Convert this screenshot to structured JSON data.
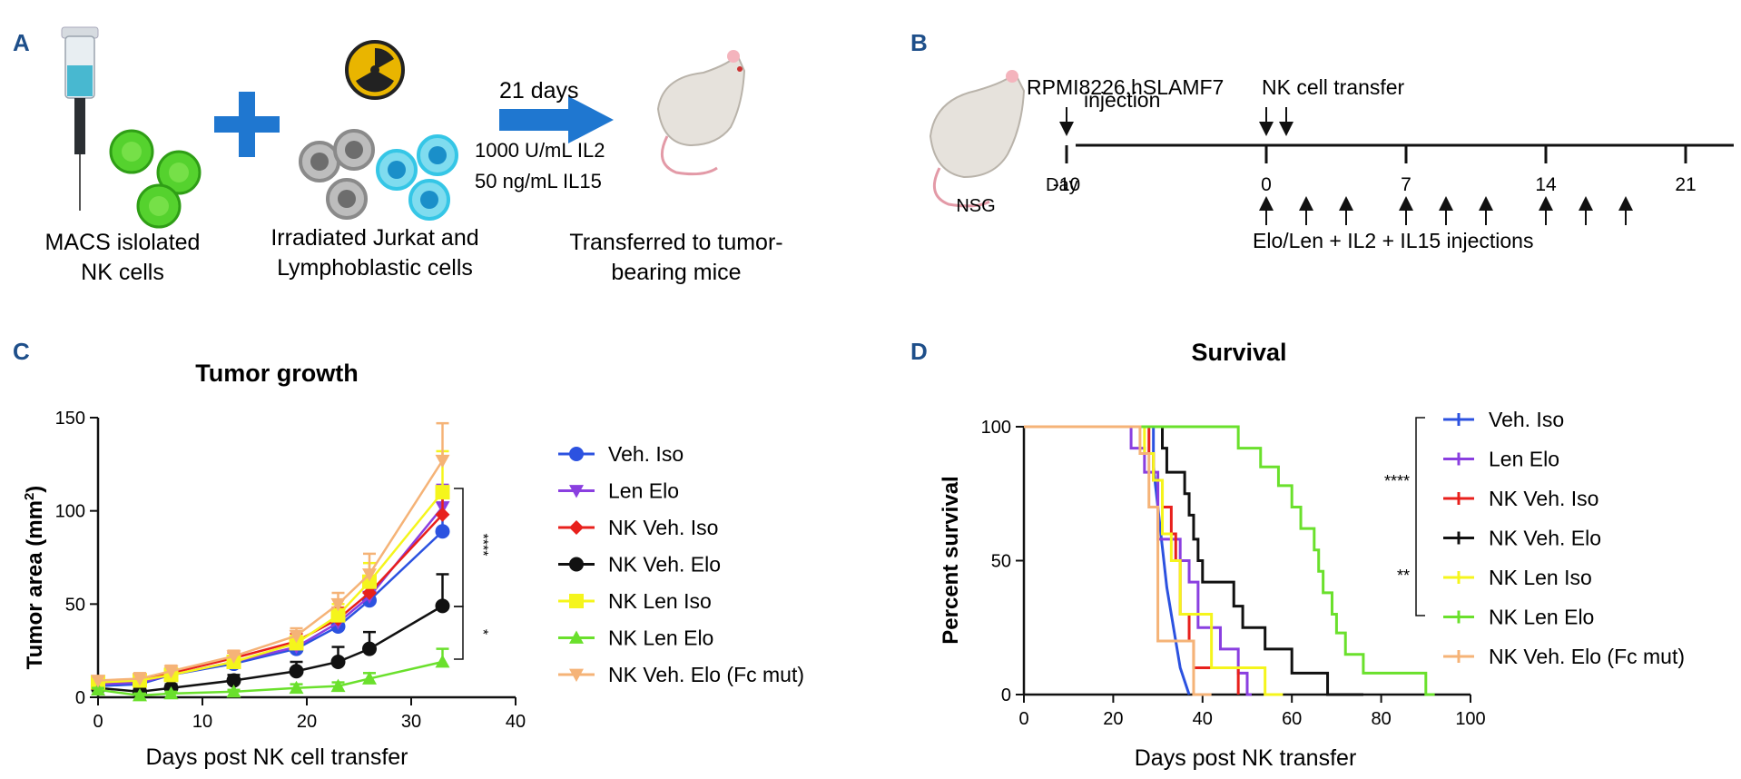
{
  "panel_a": {
    "label": "A",
    "nk_caption_1": "MACS islolated",
    "nk_caption_2": "NK cells",
    "feeder_caption_1": "Irradiated Jurkat and",
    "feeder_caption_2": "Lymphoblastic cells",
    "arrow_top": "21 days",
    "arrow_bottom_1": "1000 U/mL IL2",
    "arrow_bottom_2": "50 ng/mL IL15",
    "transfer_caption_1": "Transferred to tumor-",
    "transfer_caption_2": "bearing mice",
    "colors": {
      "arrow": "#1f77d0",
      "nk_cell": "#55d22e",
      "jurkat": "#8a8a8a",
      "lympho": "#35c6e6",
      "radiation": "#e9b500"
    }
  },
  "panel_b": {
    "label": "B",
    "mouse_label": "NSG",
    "injection_label_1": "RPMI8226.hSLAMF7",
    "injection_label_2": "injection",
    "nk_transfer_label": "NK cell transfer",
    "day_label": "Day",
    "ticks": [
      "-10",
      "0",
      "7",
      "14",
      "21"
    ],
    "tick_days": [
      -10,
      0,
      7,
      14,
      21
    ],
    "nk_transfer_days": [
      0,
      1
    ],
    "injection_days": [
      0,
      2,
      4,
      7,
      9,
      11,
      14,
      16,
      18
    ],
    "injections_label": "Elo/Len + IL2 + IL15 injections"
  },
  "panel_c": {
    "label": "C",
    "significance": [
      "****",
      "*"
    ]
  },
  "panel_d": {
    "label": "D",
    "significance": [
      "****",
      "**"
    ]
  },
  "chart_data": [
    {
      "type": "line",
      "title": "Tumor growth",
      "xlabel": "Days post NK cell transfer",
      "ylabel": "Tumor area (mm",
      "ylabel_sup": "2",
      "ylabel_close": ")",
      "xlim": [
        0,
        40
      ],
      "ylim": [
        0,
        150
      ],
      "xticks": [
        "0",
        "10",
        "20",
        "30",
        "40"
      ],
      "yticks": [
        "0",
        "50",
        "100",
        "150"
      ],
      "x": [
        0,
        4,
        7,
        13,
        19,
        23,
        26,
        33
      ],
      "series": [
        {
          "name": "Veh. Iso",
          "color": "#2c52e0",
          "marker": "circle",
          "values": [
            6,
            7,
            12,
            18,
            26,
            38,
            52,
            89
          ],
          "err": [
            2,
            3,
            3,
            4,
            5,
            7,
            9,
            20
          ]
        },
        {
          "name": "Len Elo",
          "color": "#8a3fe0",
          "marker": "tri-down",
          "values": [
            7,
            8,
            12,
            19,
            27,
            40,
            54,
            102
          ],
          "err": [
            2,
            3,
            3,
            3,
            4,
            6,
            8,
            12
          ]
        },
        {
          "name": "NK Veh. Iso",
          "color": "#e8201c",
          "marker": "diamond",
          "values": [
            8,
            9,
            13,
            21,
            30,
            42,
            56,
            98
          ],
          "err": [
            2,
            2,
            3,
            3,
            4,
            6,
            8,
            12
          ]
        },
        {
          "name": "NK Veh. Elo",
          "color": "#111111",
          "marker": "circle",
          "values": [
            5,
            3,
            5,
            9,
            14,
            19,
            26,
            49
          ],
          "err": [
            1,
            2,
            2,
            3,
            5,
            8,
            9,
            17
          ]
        },
        {
          "name": "NK Len Iso",
          "color": "#f5f51c",
          "marker": "square",
          "values": [
            8,
            9,
            12,
            19,
            29,
            44,
            62,
            110
          ],
          "err": [
            2,
            3,
            3,
            3,
            4,
            6,
            10,
            22
          ]
        },
        {
          "name": "NK Len Elo",
          "color": "#6ae02c",
          "marker": "tri-up",
          "values": [
            4,
            1,
            2,
            3,
            5,
            6,
            10,
            19
          ],
          "err": [
            1,
            1,
            1,
            1,
            2,
            2,
            3,
            7
          ]
        },
        {
          "name": "NK Veh. Elo (Fc mut)",
          "color": "#f5b377",
          "marker": "tri-down",
          "values": [
            9,
            10,
            14,
            22,
            33,
            50,
            66,
            127
          ],
          "err": [
            2,
            3,
            3,
            3,
            4,
            6,
            11,
            20
          ]
        }
      ]
    },
    {
      "type": "line",
      "step": true,
      "title": "Survival",
      "xlabel": "Days post NK transfer",
      "ylabel": "Percent survival",
      "xlim": [
        0,
        100
      ],
      "ylim": [
        0,
        100
      ],
      "xticks": [
        "0",
        "20",
        "40",
        "60",
        "80",
        "100"
      ],
      "yticks": [
        "0",
        "50",
        "100"
      ],
      "series": [
        {
          "name": "Veh. Iso",
          "color": "#2c52e0",
          "points": [
            [
              0,
              100
            ],
            [
              29,
              100
            ],
            [
              29,
              85
            ],
            [
              30,
              70
            ],
            [
              31,
              55
            ],
            [
              32,
              40
            ],
            [
              33,
              30
            ],
            [
              34,
              20
            ],
            [
              35,
              10
            ],
            [
              37,
              0
            ]
          ]
        },
        {
          "name": "Len Elo",
          "color": "#8a3fe0",
          "points": [
            [
              0,
              100
            ],
            [
              24,
              100
            ],
            [
              24,
              92
            ],
            [
              27,
              92
            ],
            [
              27,
              83
            ],
            [
              30,
              83
            ],
            [
              30,
              58
            ],
            [
              35,
              58
            ],
            [
              35,
              50
            ],
            [
              37,
              50
            ],
            [
              37,
              42
            ],
            [
              39,
              42
            ],
            [
              39,
              25
            ],
            [
              44,
              25
            ],
            [
              44,
              17
            ],
            [
              48,
              17
            ],
            [
              48,
              8
            ],
            [
              50,
              8
            ],
            [
              50,
              0
            ],
            [
              51,
              0
            ]
          ]
        },
        {
          "name": "NK Veh. Iso",
          "color": "#e8201c",
          "points": [
            [
              0,
              100
            ],
            [
              28,
              100
            ],
            [
              28,
              90
            ],
            [
              29,
              90
            ],
            [
              29,
              80
            ],
            [
              31,
              80
            ],
            [
              31,
              70
            ],
            [
              33,
              70
            ],
            [
              33,
              60
            ],
            [
              34,
              60
            ],
            [
              34,
              50
            ],
            [
              35,
              50
            ],
            [
              35,
              30
            ],
            [
              37,
              30
            ],
            [
              37,
              20
            ],
            [
              38,
              20
            ],
            [
              38,
              10
            ],
            [
              48,
              10
            ],
            [
              48,
              0
            ]
          ]
        },
        {
          "name": "NK Veh. Elo",
          "color": "#111111",
          "points": [
            [
              0,
              100
            ],
            [
              31,
              100
            ],
            [
              31,
              92
            ],
            [
              32,
              92
            ],
            [
              32,
              83
            ],
            [
              36,
              83
            ],
            [
              36,
              75
            ],
            [
              37,
              75
            ],
            [
              37,
              67
            ],
            [
              38,
              67
            ],
            [
              38,
              58
            ],
            [
              39,
              58
            ],
            [
              39,
              50
            ],
            [
              40,
              50
            ],
            [
              40,
              42
            ],
            [
              47,
              42
            ],
            [
              47,
              33
            ],
            [
              49,
              33
            ],
            [
              49,
              25
            ],
            [
              54,
              25
            ],
            [
              54,
              17
            ],
            [
              60,
              17
            ],
            [
              60,
              8
            ],
            [
              68,
              8
            ],
            [
              68,
              0
            ],
            [
              76,
              0
            ]
          ]
        },
        {
          "name": "NK Len Iso",
          "color": "#f5f51c",
          "points": [
            [
              0,
              100
            ],
            [
              27,
              100
            ],
            [
              27,
              90
            ],
            [
              29,
              90
            ],
            [
              29,
              80
            ],
            [
              31,
              80
            ],
            [
              31,
              60
            ],
            [
              33,
              60
            ],
            [
              33,
              50
            ],
            [
              35,
              50
            ],
            [
              35,
              30
            ],
            [
              42,
              30
            ],
            [
              42,
              10
            ],
            [
              54,
              10
            ],
            [
              54,
              0
            ],
            [
              58,
              0
            ]
          ]
        },
        {
          "name": "NK Len Elo",
          "color": "#6ae02c",
          "points": [
            [
              0,
              100
            ],
            [
              48,
              100
            ],
            [
              48,
              92
            ],
            [
              53,
              92
            ],
            [
              53,
              85
            ],
            [
              57,
              85
            ],
            [
              57,
              78
            ],
            [
              60,
              78
            ],
            [
              60,
              70
            ],
            [
              62,
              70
            ],
            [
              62,
              62
            ],
            [
              65,
              62
            ],
            [
              65,
              54
            ],
            [
              66,
              54
            ],
            [
              66,
              46
            ],
            [
              67,
              46
            ],
            [
              67,
              38
            ],
            [
              69,
              38
            ],
            [
              69,
              30
            ],
            [
              70,
              30
            ],
            [
              70,
              23
            ],
            [
              72,
              23
            ],
            [
              72,
              15
            ],
            [
              76,
              15
            ],
            [
              76,
              8
            ],
            [
              90,
              8
            ],
            [
              90,
              0
            ],
            [
              92,
              0
            ]
          ]
        },
        {
          "name": "NK Veh. Elo (Fc mut)",
          "color": "#f5b377",
          "points": [
            [
              0,
              100
            ],
            [
              26,
              100
            ],
            [
              26,
              90
            ],
            [
              28,
              90
            ],
            [
              28,
              70
            ],
            [
              30,
              70
            ],
            [
              30,
              20
            ],
            [
              38,
              20
            ],
            [
              38,
              0
            ],
            [
              42,
              0
            ]
          ]
        }
      ]
    }
  ]
}
